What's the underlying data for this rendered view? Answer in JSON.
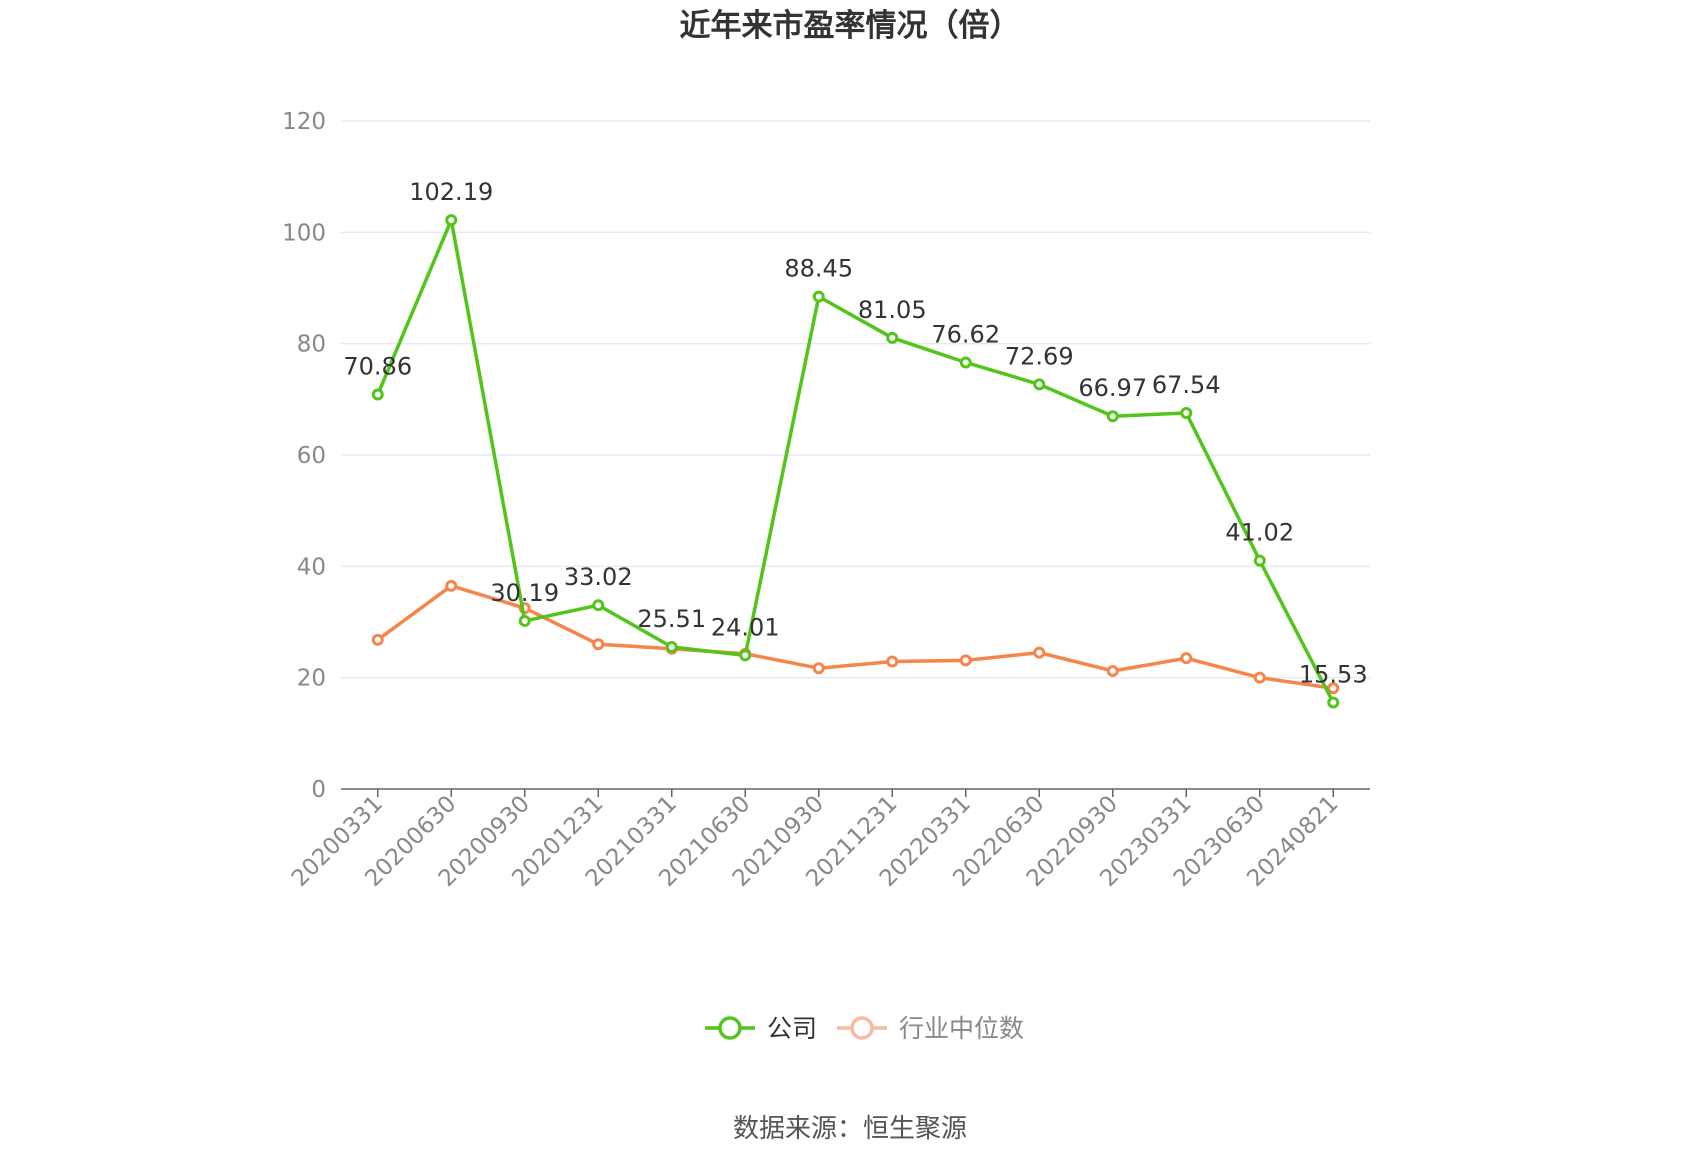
{
  "chart_data": {
    "type": "line",
    "title": "近年来市盈率情况（倍）",
    "categories": [
      "20200331",
      "20200630",
      "20200930",
      "20201231",
      "20210331",
      "20210630",
      "20210930",
      "20211231",
      "20220331",
      "20220630",
      "20220930",
      "20230331",
      "20230630",
      "20240821"
    ],
    "series": [
      {
        "name": "公司",
        "color": "#52c41a",
        "values": [
          70.86,
          102.19,
          30.19,
          33.02,
          25.51,
          24.01,
          88.45,
          81.05,
          76.62,
          72.69,
          66.97,
          67.54,
          41.02,
          15.53
        ],
        "value_labels": [
          "70.86",
          "102.19",
          "30.19",
          "33.02",
          "25.51",
          "24.01",
          "88.45",
          "81.05",
          "76.62",
          "72.69",
          "66.97",
          "67.54",
          "41.02",
          "15.53"
        ]
      },
      {
        "name": "行业中位数",
        "color": "#f5854a",
        "legend_color": "#f9b9a0",
        "values": [
          26.8,
          36.5,
          32.5,
          26.0,
          25.2,
          24.3,
          21.7,
          22.9,
          23.1,
          24.5,
          21.2,
          23.5,
          20.0,
          18.1
        ]
      }
    ],
    "y_ticks": [
      "0",
      "20",
      "40",
      "60",
      "80",
      "100",
      "120"
    ],
    "ylim": [
      0,
      120
    ],
    "grid": true,
    "legend_position": "bottom",
    "source": "数据来源：恒生聚源"
  }
}
